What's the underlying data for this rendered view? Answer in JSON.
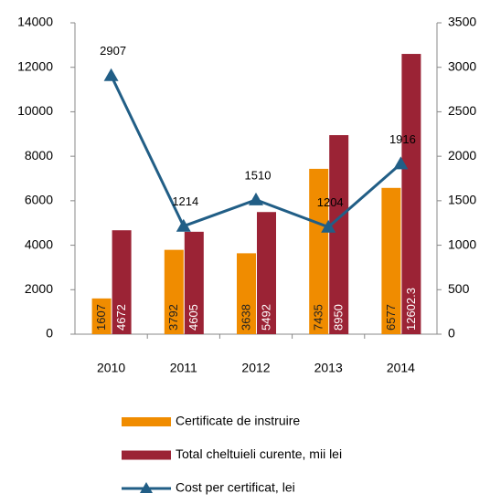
{
  "chart_data": {
    "type": "bar",
    "categories": [
      "2010",
      "2011",
      "2012",
      "2013",
      "2014"
    ],
    "series": [
      {
        "name": "Certificate de instruire",
        "color": "#f08c00",
        "values": [
          1607,
          3792,
          3638,
          7435,
          6577
        ]
      },
      {
        "name": "Total cheltuieli curente, mii lei",
        "color": "#9b2335",
        "values": [
          4672,
          4605,
          5492,
          8950,
          12602.3
        ]
      },
      {
        "name": "Cost per certificat, lei",
        "color": "#215e86",
        "axis": "y2",
        "type": "line",
        "values": [
          2907,
          1214,
          1510,
          1204,
          1916
        ]
      }
    ],
    "ylim": [
      0,
      14000
    ],
    "yticks": [
      0,
      2000,
      4000,
      6000,
      8000,
      10000,
      12000,
      14000
    ],
    "y2lim": [
      0,
      3500
    ],
    "y2ticks": [
      0,
      500,
      1000,
      1500,
      2000,
      2500,
      3000,
      3500
    ],
    "legend": "bottom"
  }
}
